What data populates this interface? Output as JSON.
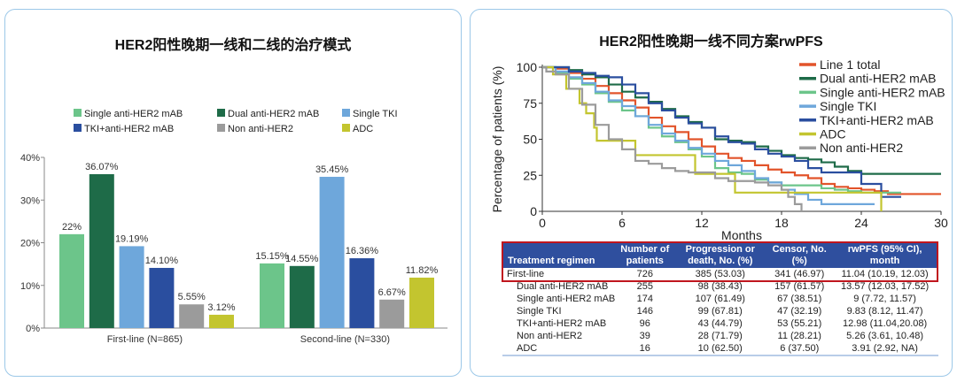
{
  "chart_data": [
    {
      "type": "bar",
      "title": "HER2阳性晚期一线和二线的治疗模式",
      "categories": [
        "First-line (N=865)",
        "Second-line (N=330)"
      ],
      "ylim": [
        0,
        40
      ],
      "yticks": [
        "0%",
        "10%",
        "20%",
        "30%",
        "40%"
      ],
      "legend_placement": "top",
      "series": [
        {
          "name": "Single anti-HER2 mAB",
          "color": "#6cc58a",
          "values": [
            22,
            15.15
          ],
          "labels": [
            "22%",
            "15.15%"
          ]
        },
        {
          "name": "Dual anti-HER2 mAB",
          "color": "#1e6b48",
          "values": [
            36.07,
            14.55
          ],
          "labels": [
            "36.07%",
            "14.55%"
          ]
        },
        {
          "name": "Single TKI",
          "color": "#6ea7db",
          "values": [
            19.19,
            35.45
          ],
          "labels": [
            "19.19%",
            "35.45%"
          ]
        },
        {
          "name": "TKI+anti-HER2 mAB",
          "color": "#2a4e9f",
          "values": [
            14.1,
            16.36
          ],
          "labels": [
            "14.10%",
            "16.36%"
          ]
        },
        {
          "name": "Non anti-HER2",
          "color": "#9b9b9b",
          "values": [
            5.55,
            6.67
          ],
          "labels": [
            "5.55%",
            "6.67%"
          ]
        },
        {
          "name": "ADC",
          "color": "#c3c52f",
          "values": [
            3.12,
            11.82
          ],
          "labels": [
            "3.12%",
            "11.82%"
          ]
        }
      ]
    },
    {
      "type": "line",
      "title": "HER2阳性晚期一线不同方案rwPFS",
      "xlabel": "Months",
      "ylabel": "Percentage of patients (%)",
      "xlim": [
        0,
        30
      ],
      "ylim": [
        0,
        100
      ],
      "xticks": [
        "0",
        "6",
        "12",
        "18",
        "24",
        "30"
      ],
      "yticks": [
        "0",
        "25",
        "50",
        "75",
        "100"
      ],
      "legend_placement": "top-right",
      "step": true,
      "series": [
        {
          "name": "Line 1 total",
          "color": "#e2542b",
          "points": [
            [
              0,
              100
            ],
            [
              1,
              99
            ],
            [
              2,
              96
            ],
            [
              3,
              92
            ],
            [
              4,
              87
            ],
            [
              5,
              82
            ],
            [
              6,
              77
            ],
            [
              7,
              72
            ],
            [
              8,
              65
            ],
            [
              9,
              59
            ],
            [
              10,
              55
            ],
            [
              11,
              50
            ],
            [
              12,
              45
            ],
            [
              13,
              40
            ],
            [
              14,
              37
            ],
            [
              15,
              35
            ],
            [
              16,
              32
            ],
            [
              17,
              29
            ],
            [
              18,
              27
            ],
            [
              19,
              25
            ],
            [
              20,
              23
            ],
            [
              21,
              19
            ],
            [
              22,
              17
            ],
            [
              23,
              16
            ],
            [
              24,
              15
            ],
            [
              25,
              14
            ],
            [
              26,
              12
            ],
            [
              30,
              12
            ]
          ]
        },
        {
          "name": "Dual anti-HER2 mAB",
          "color": "#1e6b48",
          "points": [
            [
              0,
              100
            ],
            [
              1,
              100
            ],
            [
              2,
              98
            ],
            [
              3,
              95
            ],
            [
              4,
              93
            ],
            [
              5,
              88
            ],
            [
              6,
              83
            ],
            [
              7,
              79
            ],
            [
              8,
              76
            ],
            [
              9,
              71
            ],
            [
              10,
              66
            ],
            [
              11,
              62
            ],
            [
              12,
              58
            ],
            [
              13,
              50
            ],
            [
              14,
              49
            ],
            [
              15,
              48
            ],
            [
              16,
              45
            ],
            [
              17,
              42
            ],
            [
              18,
              39
            ],
            [
              19,
              37
            ],
            [
              20,
              36
            ],
            [
              21,
              34
            ],
            [
              22,
              31
            ],
            [
              23,
              28
            ],
            [
              24,
              26
            ],
            [
              30,
              26
            ]
          ]
        },
        {
          "name": "Single anti-HER2 mAB",
          "color": "#6cc58a",
          "points": [
            [
              0,
              100
            ],
            [
              1,
              96
            ],
            [
              2,
              92
            ],
            [
              3,
              88
            ],
            [
              4,
              82
            ],
            [
              5,
              76
            ],
            [
              6,
              70
            ],
            [
              7,
              66
            ],
            [
              8,
              58
            ],
            [
              9,
              52
            ],
            [
              10,
              48
            ],
            [
              11,
              43
            ],
            [
              12,
              38
            ],
            [
              13,
              30
            ],
            [
              14,
              27
            ],
            [
              15,
              26
            ],
            [
              16,
              22
            ],
            [
              17,
              20
            ],
            [
              18,
              18
            ],
            [
              21,
              16
            ],
            [
              22,
              15
            ],
            [
              23,
              14
            ],
            [
              24,
              13
            ],
            [
              27,
              13
            ]
          ]
        },
        {
          "name": "Single TKI",
          "color": "#6ea7db",
          "points": [
            [
              0,
              100
            ],
            [
              1,
              97
            ],
            [
              2,
              93
            ],
            [
              3,
              89
            ],
            [
              4,
              83
            ],
            [
              5,
              77
            ],
            [
              6,
              73
            ],
            [
              7,
              66
            ],
            [
              8,
              60
            ],
            [
              9,
              54
            ],
            [
              10,
              49
            ],
            [
              11,
              44
            ],
            [
              12,
              40
            ],
            [
              13,
              35
            ],
            [
              14,
              32
            ],
            [
              15,
              28
            ],
            [
              16,
              23
            ],
            [
              17,
              20
            ],
            [
              18,
              15
            ],
            [
              19,
              12
            ],
            [
              20,
              8
            ],
            [
              21,
              5
            ],
            [
              25,
              5
            ]
          ]
        },
        {
          "name": "TKI+anti-HER2 mAB",
          "color": "#2a4e9f",
          "points": [
            [
              0,
              100
            ],
            [
              2,
              97
            ],
            [
              3,
              96
            ],
            [
              4,
              94
            ],
            [
              5,
              93
            ],
            [
              6,
              88
            ],
            [
              7,
              82
            ],
            [
              8,
              75
            ],
            [
              9,
              70
            ],
            [
              10,
              65
            ],
            [
              11,
              61
            ],
            [
              12,
              58
            ],
            [
              13,
              52
            ],
            [
              14,
              48
            ],
            [
              15,
              47
            ],
            [
              16,
              43
            ],
            [
              17,
              40
            ],
            [
              18,
              38
            ],
            [
              19,
              35
            ],
            [
              20,
              30
            ],
            [
              21,
              27
            ],
            [
              24,
              19
            ],
            [
              25.5,
              10
            ],
            [
              27,
              10
            ]
          ]
        },
        {
          "name": "ADC",
          "color": "#c3c52f",
          "points": [
            [
              0,
              100
            ],
            [
              0.8,
              95
            ],
            [
              1.8,
              85
            ],
            [
              2.8,
              75
            ],
            [
              3.3,
              68
            ],
            [
              3.9,
              58
            ],
            [
              4.1,
              49
            ],
            [
              7,
              39
            ],
            [
              11.5,
              26
            ],
            [
              14.5,
              13
            ],
            [
              25.5,
              0
            ]
          ]
        },
        {
          "name": "Non anti-HER2",
          "color": "#9b9b9b",
          "points": [
            [
              0,
              100
            ],
            [
              0.3,
              97
            ],
            [
              1,
              95
            ],
            [
              2,
              85
            ],
            [
              3,
              74
            ],
            [
              4,
              60
            ],
            [
              5,
              50
            ],
            [
              6,
              43
            ],
            [
              7,
              35
            ],
            [
              8,
              33
            ],
            [
              9,
              30
            ],
            [
              10,
              28
            ],
            [
              11,
              27
            ],
            [
              13,
              23
            ],
            [
              14,
              21
            ],
            [
              16,
              20
            ],
            [
              17,
              18
            ],
            [
              18,
              15
            ],
            [
              18.5,
              10
            ],
            [
              19,
              5
            ],
            [
              19.5,
              0
            ]
          ]
        }
      ]
    }
  ],
  "table": {
    "headers": [
      "Treatment regimen",
      "Number of patients",
      "Progression or death, No. (%)",
      "Censor, No. (%)",
      "rwPFS (95% CI), month"
    ],
    "rows": [
      [
        "First-line",
        "726",
        "385 (53.03)",
        "341 (46.97)",
        "11.04 (10.19, 12.03)"
      ],
      [
        "Dual anti-HER2 mAB",
        "255",
        "98 (38.43)",
        "157 (61.57)",
        "13.57 (12.03, 17.52)"
      ],
      [
        "Single anti-HER2 mAB",
        "174",
        "107 (61.49)",
        "67 (38.51)",
        "9 (7.72, 11.57)"
      ],
      [
        "Single TKI",
        "146",
        "99 (67.81)",
        "47 (32.19)",
        "9.83 (8.12, 11.47)"
      ],
      [
        "TKI+anti-HER2 mAB",
        "96",
        "43 (44.79)",
        "53 (55.21)",
        "12.98 (11.04,20.08)"
      ],
      [
        "Non anti-HER2",
        "39",
        "28 (71.79)",
        "11 (28.21)",
        "5.26 (3.61, 10.48)"
      ],
      [
        "ADC",
        "16",
        "10 (62.50)",
        "6 (37.50)",
        "3.91 (2.92, NA)"
      ]
    ],
    "highlight_color": "#c0161e",
    "header_color": "#2f4f9e"
  }
}
